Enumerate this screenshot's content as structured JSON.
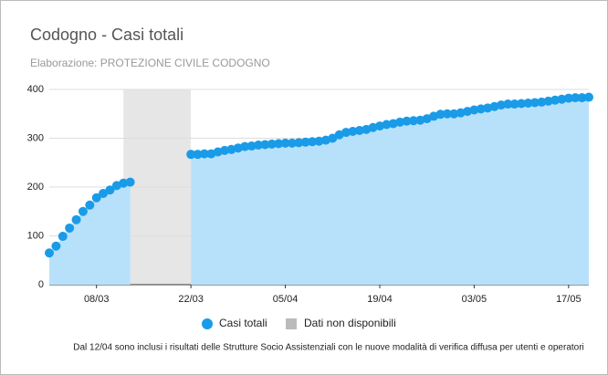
{
  "chart_data": {
    "type": "area",
    "title": "Codogno - Casi totali",
    "subtitle": "Elaborazione: PROTEZIONE CIVILE CODOGNO",
    "note": "Dal 12/04 sono inclusi i risultati delle Strutture Socio Assistenziali con le nuove modalità di verifica diffusa per utenti e operatori",
    "x": [
      "01/03",
      "02/03",
      "03/03",
      "04/03",
      "05/03",
      "06/03",
      "07/03",
      "08/03",
      "09/03",
      "10/03",
      "11/03",
      "12/03",
      "13/03",
      "14/03",
      "15/03",
      "16/03",
      "17/03",
      "18/03",
      "19/03",
      "20/03",
      "21/03",
      "22/03",
      "23/03",
      "24/03",
      "25/03",
      "26/03",
      "27/03",
      "28/03",
      "29/03",
      "30/03",
      "31/03",
      "01/04",
      "02/04",
      "03/04",
      "04/04",
      "05/04",
      "06/04",
      "07/04",
      "08/04",
      "09/04",
      "10/04",
      "11/04",
      "12/04",
      "13/04",
      "14/04",
      "15/04",
      "16/04",
      "17/04",
      "18/04",
      "19/04",
      "20/04",
      "21/04",
      "22/04",
      "23/04",
      "24/04",
      "25/04",
      "26/04",
      "27/04",
      "28/04",
      "29/04",
      "30/04",
      "01/05",
      "02/05",
      "03/05",
      "04/05",
      "05/05",
      "06/05",
      "07/05",
      "08/05",
      "09/05",
      "10/05",
      "11/05",
      "12/05",
      "13/05",
      "14/05",
      "15/05",
      "16/05",
      "17/05",
      "18/05",
      "19/05",
      "20/05"
    ],
    "series": [
      {
        "name": "Casi totali",
        "color": "#1a9be8",
        "fill": "#b7e1fb",
        "values": [
          65,
          79,
          99,
          116,
          133,
          150,
          163,
          178,
          187,
          194,
          203,
          208,
          210,
          null,
          null,
          null,
          null,
          null,
          null,
          null,
          null,
          267,
          267,
          268,
          268,
          272,
          275,
          277,
          280,
          283,
          284,
          286,
          287,
          288,
          289,
          290,
          290,
          291,
          292,
          293,
          294,
          296,
          300,
          307,
          312,
          314,
          316,
          318,
          322,
          325,
          328,
          330,
          333,
          335,
          336,
          337,
          340,
          345,
          349,
          350,
          350,
          352,
          355,
          358,
          360,
          362,
          365,
          368,
          370,
          370,
          371,
          372,
          373,
          374,
          376,
          378,
          380,
          382,
          383,
          383,
          384
        ]
      }
    ],
    "unavailable": {
      "name": "Dati non disponibili",
      "from": "13/03",
      "to": "22/03",
      "color": "#e6e6e6"
    },
    "xticks": [
      "08/03",
      "22/03",
      "05/04",
      "19/04",
      "03/05",
      "17/05"
    ],
    "ylim": [
      0,
      400
    ],
    "yticks": [
      0,
      100,
      200,
      300,
      400
    ],
    "grid": true
  }
}
